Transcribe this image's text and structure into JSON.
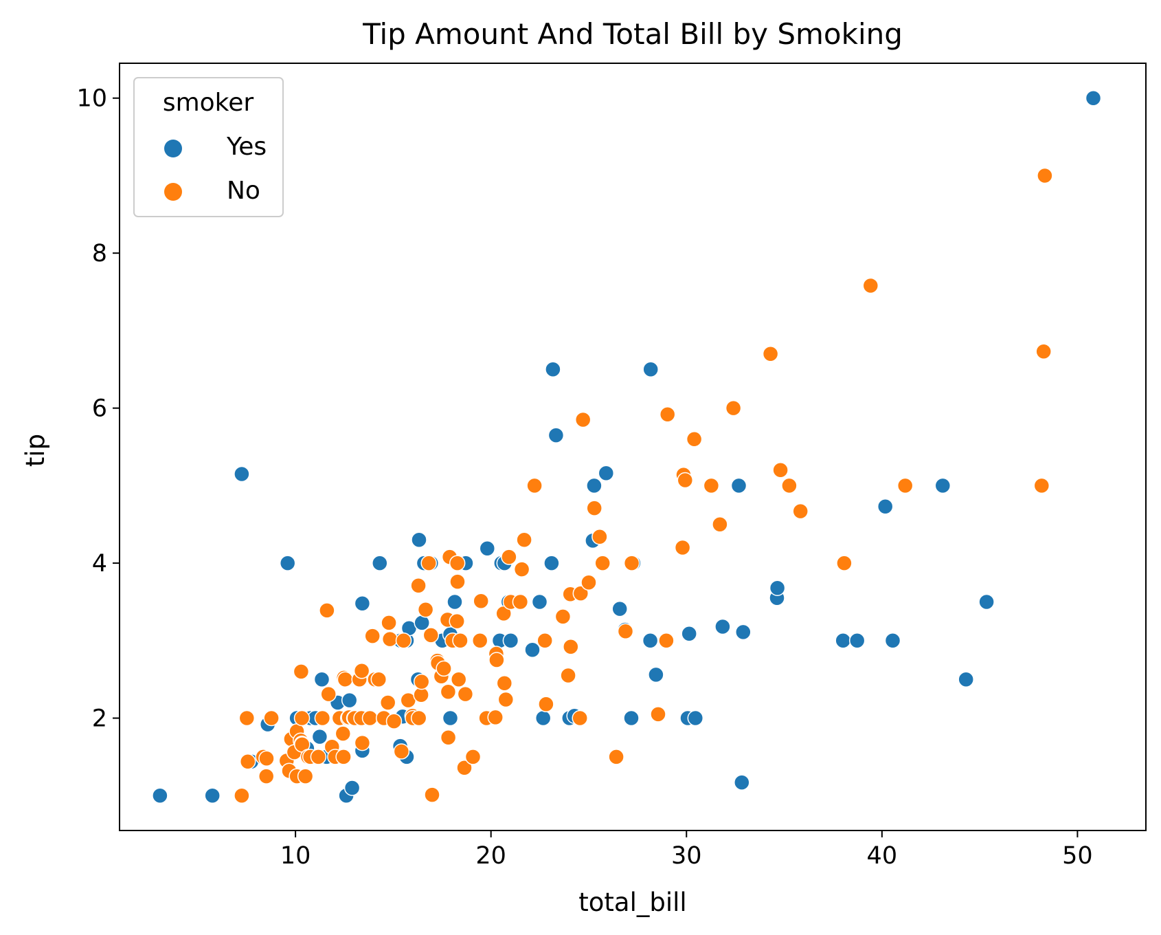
{
  "chart_data": {
    "type": "scatter",
    "title": "Tip Amount And Total Bill by Smoking",
    "xlabel": "total_bill",
    "ylabel": "tip",
    "xlim": [
      1.0,
      53.5
    ],
    "ylim": [
      0.55,
      10.45
    ],
    "xticks": [
      10,
      20,
      30,
      40,
      50
    ],
    "yticks": [
      2,
      4,
      6,
      8,
      10
    ],
    "grid": false,
    "legend": {
      "title": "smoker",
      "placement": "top-left"
    },
    "series": [
      {
        "name": "Yes",
        "color": "#1f77b4",
        "points": [
          [
            3.07,
            1.0
          ],
          [
            5.75,
            1.0
          ],
          [
            7.25,
            5.15
          ],
          [
            7.74,
            1.44
          ],
          [
            8.58,
            1.92
          ],
          [
            9.6,
            4.0
          ],
          [
            10.07,
            2.0
          ],
          [
            10.34,
            2.0
          ],
          [
            10.59,
            1.61
          ],
          [
            10.77,
            2.0
          ],
          [
            11.02,
            2.0
          ],
          [
            11.24,
            1.76
          ],
          [
            11.35,
            2.5
          ],
          [
            11.59,
            1.5
          ],
          [
            12.16,
            2.2
          ],
          [
            12.6,
            1.0
          ],
          [
            12.76,
            2.23
          ],
          [
            12.9,
            1.1
          ],
          [
            13.0,
            2.0
          ],
          [
            13.13,
            2.0
          ],
          [
            13.28,
            2.5
          ],
          [
            13.42,
            1.58
          ],
          [
            13.42,
            3.48
          ],
          [
            13.51,
            2.0
          ],
          [
            14.31,
            4.0
          ],
          [
            14.48,
            2.0
          ],
          [
            15.36,
            1.64
          ],
          [
            15.38,
            3.0
          ],
          [
            15.48,
            2.02
          ],
          [
            15.69,
            3.0
          ],
          [
            15.69,
            1.5
          ],
          [
            15.81,
            3.16
          ],
          [
            16.27,
            2.5
          ],
          [
            16.32,
            4.3
          ],
          [
            16.47,
            3.23
          ],
          [
            16.58,
            4.0
          ],
          [
            16.93,
            4.0
          ],
          [
            17.51,
            3.0
          ],
          [
            17.92,
            3.08
          ],
          [
            17.92,
            2.0
          ],
          [
            18.15,
            3.5
          ],
          [
            18.71,
            4.0
          ],
          [
            19.44,
            3.0
          ],
          [
            19.81,
            4.19
          ],
          [
            20.45,
            3.0
          ],
          [
            20.53,
            4.0
          ],
          [
            20.69,
            4.0
          ],
          [
            20.76,
            2.24
          ],
          [
            20.9,
            3.5
          ],
          [
            21.01,
            3.0
          ],
          [
            22.12,
            2.88
          ],
          [
            22.49,
            3.5
          ],
          [
            22.67,
            2.0
          ],
          [
            23.1,
            4.0
          ],
          [
            23.17,
            6.5
          ],
          [
            23.33,
            5.65
          ],
          [
            24.01,
            2.0
          ],
          [
            24.27,
            2.03
          ],
          [
            25.21,
            4.29
          ],
          [
            25.28,
            5.0
          ],
          [
            25.89,
            5.16
          ],
          [
            26.59,
            3.41
          ],
          [
            26.86,
            3.14
          ],
          [
            27.18,
            2.0
          ],
          [
            27.28,
            4.0
          ],
          [
            28.15,
            3.0
          ],
          [
            28.17,
            6.5
          ],
          [
            28.44,
            2.56
          ],
          [
            28.97,
            3.0
          ],
          [
            30.06,
            2.0
          ],
          [
            30.14,
            3.09
          ],
          [
            30.46,
            2.0
          ],
          [
            31.85,
            3.18
          ],
          [
            32.68,
            5.0
          ],
          [
            32.83,
            1.17
          ],
          [
            32.9,
            3.11
          ],
          [
            34.63,
            3.55
          ],
          [
            34.65,
            3.68
          ],
          [
            38.01,
            3.0
          ],
          [
            38.73,
            3.0
          ],
          [
            40.17,
            4.73
          ],
          [
            40.55,
            3.0
          ],
          [
            43.11,
            5.0
          ],
          [
            44.3,
            2.5
          ],
          [
            45.35,
            3.5
          ],
          [
            50.81,
            10.0
          ]
        ]
      },
      {
        "name": "No",
        "color": "#ff7f0e",
        "points": [
          [
            7.25,
            1.0
          ],
          [
            7.51,
            2.0
          ],
          [
            7.56,
            1.44
          ],
          [
            8.35,
            1.5
          ],
          [
            8.51,
            1.25
          ],
          [
            8.52,
            1.48
          ],
          [
            8.77,
            2.0
          ],
          [
            9.55,
            1.45
          ],
          [
            9.68,
            1.32
          ],
          [
            9.78,
            1.73
          ],
          [
            9.94,
            1.56
          ],
          [
            10.07,
            1.83
          ],
          [
            10.07,
            1.25
          ],
          [
            10.27,
            1.71
          ],
          [
            10.29,
            2.6
          ],
          [
            10.33,
            1.67
          ],
          [
            10.33,
            2.0
          ],
          [
            10.34,
            1.66
          ],
          [
            10.51,
            1.25
          ],
          [
            10.65,
            1.5
          ],
          [
            10.76,
            1.5
          ],
          [
            11.17,
            1.5
          ],
          [
            11.38,
            2.0
          ],
          [
            11.61,
            3.39
          ],
          [
            11.69,
            2.31
          ],
          [
            11.87,
            1.63
          ],
          [
            12.03,
            1.5
          ],
          [
            12.26,
            2.0
          ],
          [
            12.43,
            1.8
          ],
          [
            12.46,
            1.5
          ],
          [
            12.48,
            2.52
          ],
          [
            12.54,
            2.5
          ],
          [
            12.69,
            2.0
          ],
          [
            12.74,
            2.01
          ],
          [
            13.0,
            2.0
          ],
          [
            13.03,
            2.0
          ],
          [
            13.27,
            2.5
          ],
          [
            13.37,
            2.0
          ],
          [
            13.39,
            2.61
          ],
          [
            13.42,
            1.68
          ],
          [
            13.81,
            2.0
          ],
          [
            13.94,
            3.06
          ],
          [
            14.07,
            2.5
          ],
          [
            14.26,
            2.5
          ],
          [
            14.52,
            2.0
          ],
          [
            14.73,
            2.2
          ],
          [
            14.78,
            3.23
          ],
          [
            14.83,
            3.02
          ],
          [
            15.04,
            1.96
          ],
          [
            15.42,
            1.57
          ],
          [
            15.53,
            3.0
          ],
          [
            15.77,
            2.23
          ],
          [
            15.98,
            2.03
          ],
          [
            16.0,
            2.0
          ],
          [
            16.29,
            3.71
          ],
          [
            16.31,
            2.0
          ],
          [
            16.43,
            2.3
          ],
          [
            16.45,
            2.47
          ],
          [
            16.66,
            3.4
          ],
          [
            16.82,
            4.0
          ],
          [
            16.93,
            3.07
          ],
          [
            16.99,
            1.01
          ],
          [
            17.26,
            2.74
          ],
          [
            17.29,
            2.71
          ],
          [
            17.46,
            2.54
          ],
          [
            17.59,
            2.64
          ],
          [
            17.78,
            3.27
          ],
          [
            17.81,
            2.34
          ],
          [
            17.82,
            1.75
          ],
          [
            17.89,
            4.08
          ],
          [
            18.04,
            3.0
          ],
          [
            18.24,
            3.76
          ],
          [
            18.26,
            3.25
          ],
          [
            18.28,
            4.0
          ],
          [
            18.29,
            3.76
          ],
          [
            18.35,
            2.5
          ],
          [
            18.43,
            3.0
          ],
          [
            18.64,
            1.36
          ],
          [
            18.69,
            2.31
          ],
          [
            19.08,
            1.5
          ],
          [
            19.44,
            3.0
          ],
          [
            19.49,
            3.51
          ],
          [
            19.77,
            2.0
          ],
          [
            20.23,
            2.01
          ],
          [
            20.27,
            2.83
          ],
          [
            20.29,
            2.75
          ],
          [
            20.65,
            3.35
          ],
          [
            20.69,
            2.45
          ],
          [
            20.76,
            2.24
          ],
          [
            20.92,
            4.08
          ],
          [
            21.01,
            3.5
          ],
          [
            21.5,
            3.5
          ],
          [
            21.58,
            3.92
          ],
          [
            21.7,
            4.3
          ],
          [
            22.23,
            5.0
          ],
          [
            22.76,
            3.0
          ],
          [
            22.82,
            2.18
          ],
          [
            23.68,
            3.31
          ],
          [
            23.95,
            2.55
          ],
          [
            24.06,
            3.6
          ],
          [
            24.08,
            2.92
          ],
          [
            24.55,
            2.0
          ],
          [
            24.59,
            3.61
          ],
          [
            24.71,
            5.85
          ],
          [
            25.0,
            3.75
          ],
          [
            25.29,
            4.71
          ],
          [
            25.56,
            4.34
          ],
          [
            25.71,
            4.0
          ],
          [
            26.41,
            1.5
          ],
          [
            26.88,
            3.12
          ],
          [
            27.2,
            4.0
          ],
          [
            28.55,
            2.05
          ],
          [
            28.97,
            3.0
          ],
          [
            29.03,
            5.92
          ],
          [
            29.8,
            4.2
          ],
          [
            29.85,
            5.14
          ],
          [
            29.93,
            5.07
          ],
          [
            30.4,
            5.6
          ],
          [
            31.27,
            5.0
          ],
          [
            31.71,
            4.5
          ],
          [
            32.4,
            6.0
          ],
          [
            34.3,
            6.7
          ],
          [
            34.81,
            5.2
          ],
          [
            35.26,
            5.0
          ],
          [
            35.83,
            4.67
          ],
          [
            38.07,
            4.0
          ],
          [
            39.42,
            7.58
          ],
          [
            41.19,
            5.0
          ],
          [
            48.17,
            5.0
          ],
          [
            48.27,
            6.73
          ],
          [
            48.33,
            9.0
          ]
        ]
      }
    ]
  }
}
